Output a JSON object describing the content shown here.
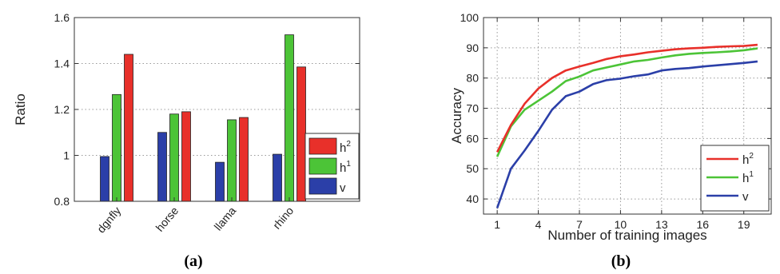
{
  "chart_data": [
    {
      "type": "bar",
      "caption": "(a)",
      "ylabel": "Ratio",
      "xlabel": "",
      "ylim": [
        0.8,
        1.6
      ],
      "yticks": [
        "0.8",
        "1",
        "1.2",
        "1.4",
        "1.6"
      ],
      "categories": [
        "dgnfly",
        "horse",
        "llama",
        "rhino"
      ],
      "grid": "horizontal dotted",
      "legend_position": "right",
      "series": [
        {
          "name": "v",
          "color": "#2b3fa8",
          "values": [
            0.995,
            1.1,
            0.97,
            1.005
          ]
        },
        {
          "name": "h1",
          "color": "#4cc437",
          "values": [
            1.265,
            1.18,
            1.155,
            1.525
          ]
        },
        {
          "name": "h2",
          "color": "#e8302a",
          "values": [
            1.44,
            1.19,
            1.165,
            1.385
          ]
        }
      ],
      "legend": [
        {
          "base": "h",
          "sup": "2",
          "color": "#e8302a"
        },
        {
          "base": "h",
          "sup": "1",
          "color": "#4cc437"
        },
        {
          "base": "v",
          "sup": "",
          "color": "#2b3fa8"
        }
      ]
    },
    {
      "type": "line",
      "caption": "(b)",
      "xlabel": "Number of training images",
      "ylabel": "Accuracy",
      "xlim": [
        1,
        20
      ],
      "ylim": [
        35,
        100
      ],
      "xticks": [
        "1",
        "4",
        "7",
        "10",
        "13",
        "16",
        "19"
      ],
      "yticks": [
        "40",
        "50",
        "60",
        "70",
        "80",
        "90",
        "100"
      ],
      "grid": "both dotted",
      "legend_position": "bottom-right",
      "x": [
        1,
        2,
        3,
        4,
        5,
        6,
        7,
        8,
        9,
        10,
        11,
        12,
        13,
        14,
        15,
        16,
        17,
        18,
        19,
        20
      ],
      "series": [
        {
          "name": "h2",
          "color": "#e8302a",
          "values": [
            55.5,
            64.5,
            71.5,
            76.5,
            80,
            82.5,
            83.8,
            85,
            86.3,
            87.2,
            87.8,
            88.5,
            89,
            89.5,
            89.8,
            90,
            90.3,
            90.5,
            90.6,
            91
          ]
        },
        {
          "name": "h1",
          "color": "#4cc437",
          "values": [
            54,
            64,
            69.5,
            72.5,
            75.5,
            79,
            80.5,
            82.5,
            83.5,
            84.5,
            85.5,
            86,
            86.8,
            87.5,
            88,
            88.3,
            88.5,
            88.8,
            89.2,
            89.8
          ]
        },
        {
          "name": "v",
          "color": "#2b3fa8",
          "values": [
            37,
            50,
            56,
            62.5,
            69.5,
            74,
            75.5,
            78,
            79.3,
            79.8,
            80.6,
            81.2,
            82.5,
            83,
            83.3,
            83.8,
            84.2,
            84.6,
            85,
            85.5
          ]
        }
      ],
      "legend": [
        {
          "base": "h",
          "sup": "2",
          "color": "#e8302a"
        },
        {
          "base": "h",
          "sup": "1",
          "color": "#4cc437"
        },
        {
          "base": "v",
          "sup": "",
          "color": "#2b3fa8"
        }
      ]
    }
  ]
}
